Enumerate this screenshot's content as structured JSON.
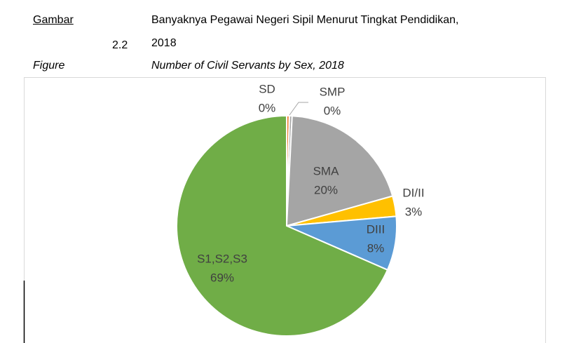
{
  "header": {
    "label": "Gambar",
    "number": "2.2",
    "title": "Banyaknya Pegawai Negeri Sipil Menurut Tingkat Pendidikan,",
    "title_line2": "2018",
    "label_en": "Figure",
    "title_en": "Number of Civil Servants by Sex, 2018"
  },
  "chart_data": {
    "type": "pie",
    "categories": [
      "SD",
      "SMP",
      "SMA",
      "DI/II",
      "DIII",
      "S1,S2,S3"
    ],
    "values": [
      0.4,
      0.4,
      20,
      3,
      8,
      69
    ],
    "value_labels": [
      "0%",
      "0%",
      "20%",
      "3%",
      "8%",
      "69%"
    ],
    "colors": [
      "#ed7d31",
      "#a5a5a5",
      "#a5a5a5",
      "#ffc000",
      "#5b9bd5",
      "#70ad47"
    ]
  }
}
